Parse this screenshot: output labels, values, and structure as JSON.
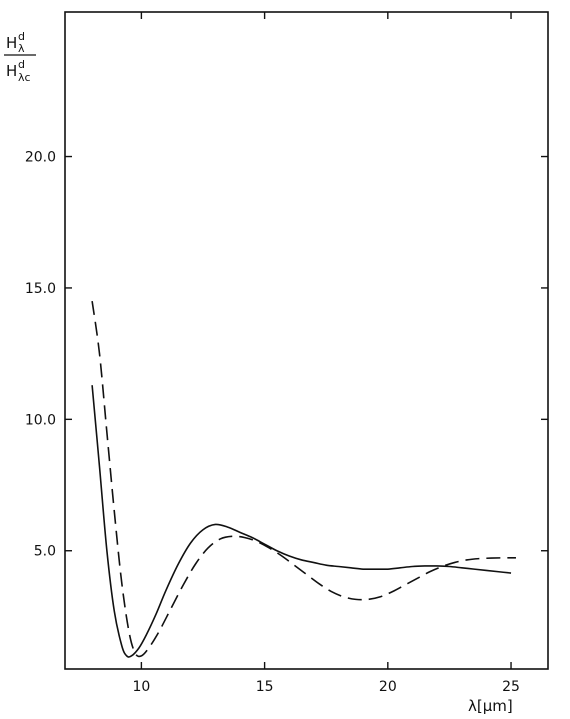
{
  "chart_data": {
    "type": "line",
    "title": "",
    "xlabel": "λ[μm]",
    "ylabel": {
      "numerator": "H",
      "numerator_sup": "d",
      "numerator_sub": "λ",
      "denominator": "H",
      "denominator_sup": "d",
      "denominator_sub": "λc"
    },
    "xlim": [
      6.9,
      26.5
    ],
    "ylim": [
      0.5,
      25.5
    ],
    "x_ticks": [
      10,
      15,
      20,
      25
    ],
    "x_tick_labels": [
      "10",
      "15",
      "20",
      "25"
    ],
    "y_ticks": [
      5.0,
      10.0,
      15.0,
      20.0
    ],
    "y_tick_labels": [
      "5.0",
      "10.0",
      "15.0",
      "20.0"
    ],
    "grid": false,
    "legend": "none",
    "series": [
      {
        "style": "solid",
        "color": "#111111",
        "points": [
          [
            8.0,
            11.3
          ],
          [
            8.3,
            8.2
          ],
          [
            8.6,
            5.0
          ],
          [
            8.9,
            2.7
          ],
          [
            9.2,
            1.4
          ],
          [
            9.4,
            1.0
          ],
          [
            9.6,
            1.0
          ],
          [
            9.9,
            1.3
          ],
          [
            10.2,
            1.8
          ],
          [
            10.6,
            2.6
          ],
          [
            11.0,
            3.5
          ],
          [
            11.5,
            4.5
          ],
          [
            12.0,
            5.3
          ],
          [
            12.5,
            5.8
          ],
          [
            13.0,
            6.0
          ],
          [
            13.5,
            5.9
          ],
          [
            14.0,
            5.7
          ],
          [
            14.5,
            5.5
          ],
          [
            15.0,
            5.25
          ],
          [
            15.5,
            5.0
          ],
          [
            16.0,
            4.8
          ],
          [
            16.5,
            4.65
          ],
          [
            17.0,
            4.55
          ],
          [
            17.5,
            4.45
          ],
          [
            18.0,
            4.4
          ],
          [
            18.5,
            4.35
          ],
          [
            19.0,
            4.3
          ],
          [
            19.5,
            4.3
          ],
          [
            20.0,
            4.3
          ],
          [
            20.5,
            4.35
          ],
          [
            21.0,
            4.4
          ],
          [
            21.5,
            4.42
          ],
          [
            22.0,
            4.42
          ],
          [
            22.5,
            4.4
          ],
          [
            23.0,
            4.35
          ],
          [
            23.5,
            4.3
          ],
          [
            24.0,
            4.25
          ],
          [
            24.5,
            4.2
          ],
          [
            25.0,
            4.15
          ]
        ]
      },
      {
        "style": "dashed",
        "color": "#111111",
        "points": [
          [
            8.0,
            14.5
          ],
          [
            8.3,
            12.5
          ],
          [
            8.6,
            9.5
          ],
          [
            8.9,
            6.5
          ],
          [
            9.2,
            3.8
          ],
          [
            9.5,
            1.9
          ],
          [
            9.75,
            1.1
          ],
          [
            10.0,
            1.0
          ],
          [
            10.3,
            1.3
          ],
          [
            10.7,
            1.9
          ],
          [
            11.2,
            2.8
          ],
          [
            11.7,
            3.7
          ],
          [
            12.2,
            4.5
          ],
          [
            12.7,
            5.1
          ],
          [
            13.2,
            5.45
          ],
          [
            13.7,
            5.55
          ],
          [
            14.2,
            5.5
          ],
          [
            14.7,
            5.35
          ],
          [
            15.2,
            5.1
          ],
          [
            15.7,
            4.8
          ],
          [
            16.2,
            4.45
          ],
          [
            16.7,
            4.1
          ],
          [
            17.2,
            3.75
          ],
          [
            17.7,
            3.45
          ],
          [
            18.2,
            3.25
          ],
          [
            18.7,
            3.15
          ],
          [
            19.2,
            3.15
          ],
          [
            19.7,
            3.25
          ],
          [
            20.2,
            3.45
          ],
          [
            20.7,
            3.7
          ],
          [
            21.2,
            3.95
          ],
          [
            21.7,
            4.2
          ],
          [
            22.2,
            4.4
          ],
          [
            22.7,
            4.55
          ],
          [
            23.2,
            4.65
          ],
          [
            23.7,
            4.7
          ],
          [
            24.2,
            4.72
          ],
          [
            24.7,
            4.73
          ],
          [
            25.2,
            4.73
          ]
        ]
      }
    ]
  }
}
